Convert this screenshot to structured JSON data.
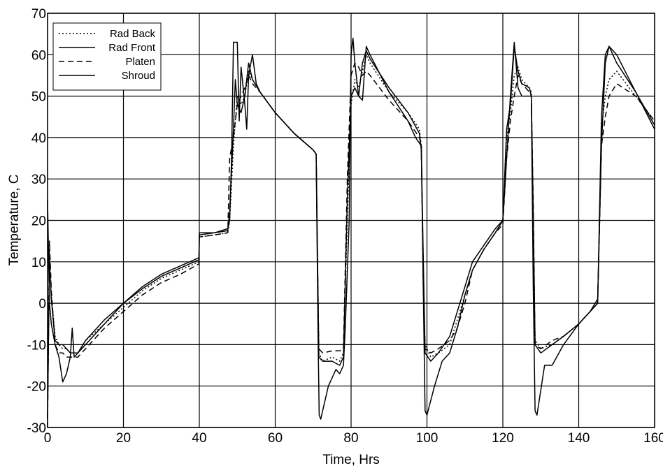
{
  "chart_data": {
    "type": "line",
    "title": "",
    "xlabel": "Time, Hrs",
    "ylabel": "Temperature, C",
    "xlim": [
      0,
      160
    ],
    "ylim": [
      -30,
      70
    ],
    "xticks": [
      0,
      20,
      40,
      60,
      80,
      100,
      120,
      140,
      160
    ],
    "yticks": [
      -30,
      -20,
      -10,
      0,
      10,
      20,
      30,
      40,
      50,
      60,
      70
    ],
    "grid": true,
    "legend_position": "top-left",
    "series": [
      {
        "name": "Rad Back",
        "style": "dotted",
        "color": "#000000",
        "points": [
          [
            0,
            -28
          ],
          [
            0.5,
            12
          ],
          [
            1,
            2
          ],
          [
            2,
            -8
          ],
          [
            3,
            -10
          ],
          [
            4,
            -11
          ],
          [
            5,
            -11
          ],
          [
            6,
            -12
          ],
          [
            8,
            -12
          ],
          [
            10,
            -9
          ],
          [
            15,
            -5
          ],
          [
            20,
            -1
          ],
          [
            25,
            3
          ],
          [
            30,
            6
          ],
          [
            35,
            8
          ],
          [
            39.9,
            10
          ],
          [
            40,
            16
          ],
          [
            44,
            16.5
          ],
          [
            47.5,
            17
          ],
          [
            48,
            20
          ],
          [
            49,
            38
          ],
          [
            50,
            50
          ],
          [
            51,
            48
          ],
          [
            52,
            50
          ],
          [
            53,
            56
          ],
          [
            54,
            54
          ],
          [
            56,
            51
          ],
          [
            60,
            46
          ],
          [
            65,
            41
          ],
          [
            70,
            37
          ],
          [
            70.8,
            36
          ],
          [
            71,
            20
          ],
          [
            71.5,
            -12
          ],
          [
            72.5,
            -14
          ],
          [
            75,
            -13
          ],
          [
            77,
            -14
          ],
          [
            78,
            -12
          ],
          [
            79,
            20
          ],
          [
            80,
            48
          ],
          [
            81,
            54
          ],
          [
            82,
            52
          ],
          [
            83,
            56
          ],
          [
            84,
            60
          ],
          [
            85,
            58
          ],
          [
            90,
            51
          ],
          [
            95,
            46
          ],
          [
            98,
            42
          ],
          [
            98.5,
            38
          ],
          [
            99,
            10
          ],
          [
            99.5,
            -10
          ],
          [
            101,
            -13
          ],
          [
            103,
            -12
          ],
          [
            106,
            -10
          ],
          [
            108,
            -4
          ],
          [
            110,
            2
          ],
          [
            112,
            8
          ],
          [
            115,
            13
          ],
          [
            118,
            17
          ],
          [
            120,
            20
          ],
          [
            121,
            40
          ],
          [
            122,
            46
          ],
          [
            123,
            55
          ],
          [
            124,
            57
          ],
          [
            125,
            54
          ],
          [
            127,
            52
          ],
          [
            127.5,
            51
          ],
          [
            128,
            20
          ],
          [
            128.5,
            -9
          ],
          [
            130,
            -11
          ],
          [
            133,
            -10
          ],
          [
            136,
            -8
          ],
          [
            140,
            -5
          ],
          [
            143,
            -2
          ],
          [
            145,
            0
          ],
          [
            146,
            42
          ],
          [
            147,
            50
          ],
          [
            148,
            54
          ],
          [
            150,
            56
          ],
          [
            155,
            50
          ],
          [
            160,
            44
          ]
        ]
      },
      {
        "name": "Rad Front",
        "style": "solid",
        "color": "#000000",
        "points": [
          [
            0,
            -28
          ],
          [
            0.5,
            10
          ],
          [
            1,
            1
          ],
          [
            2,
            -9
          ],
          [
            3,
            -10
          ],
          [
            4,
            -10
          ],
          [
            5,
            -11
          ],
          [
            6,
            -12
          ],
          [
            8,
            -12
          ],
          [
            10,
            -9
          ],
          [
            15,
            -4
          ],
          [
            20,
            0
          ],
          [
            25,
            3.5
          ],
          [
            30,
            6.5
          ],
          [
            35,
            8.5
          ],
          [
            39.9,
            10.5
          ],
          [
            40,
            16.5
          ],
          [
            44,
            17
          ],
          [
            47.5,
            17.5
          ],
          [
            48,
            22
          ],
          [
            49,
            42
          ],
          [
            49.5,
            54
          ],
          [
            50,
            48
          ],
          [
            51,
            46
          ],
          [
            52,
            50
          ],
          [
            53,
            58
          ],
          [
            54,
            54
          ],
          [
            56,
            51
          ],
          [
            60,
            46
          ],
          [
            65,
            41
          ],
          [
            70,
            37
          ],
          [
            70.8,
            36
          ],
          [
            71,
            22
          ],
          [
            71.5,
            -13
          ],
          [
            72.5,
            -14
          ],
          [
            75,
            -14
          ],
          [
            77,
            -15
          ],
          [
            78,
            -13
          ],
          [
            79,
            25
          ],
          [
            80,
            50
          ],
          [
            81,
            52
          ],
          [
            82,
            50
          ],
          [
            83,
            58
          ],
          [
            84,
            61
          ],
          [
            85,
            59
          ],
          [
            90,
            52
          ],
          [
            95,
            46
          ],
          [
            98,
            41
          ],
          [
            98.5,
            37
          ],
          [
            99,
            12
          ],
          [
            99.5,
            -12
          ],
          [
            101,
            -14
          ],
          [
            103,
            -12
          ],
          [
            106,
            -8
          ],
          [
            108,
            -2
          ],
          [
            110,
            4
          ],
          [
            112,
            10
          ],
          [
            115,
            14
          ],
          [
            118,
            18
          ],
          [
            120,
            20
          ],
          [
            121,
            42
          ],
          [
            122,
            48
          ],
          [
            123,
            62
          ],
          [
            124,
            56
          ],
          [
            125,
            53
          ],
          [
            127,
            52
          ],
          [
            127.5,
            50
          ],
          [
            128,
            22
          ],
          [
            128.5,
            -10
          ],
          [
            130,
            -12
          ],
          [
            133,
            -10
          ],
          [
            136,
            -8
          ],
          [
            140,
            -5
          ],
          [
            143,
            -2
          ],
          [
            145,
            0
          ],
          [
            146,
            45
          ],
          [
            147,
            60
          ],
          [
            148,
            62
          ],
          [
            150,
            58
          ],
          [
            155,
            51
          ],
          [
            160,
            43
          ]
        ]
      },
      {
        "name": "Platen",
        "style": "dashed",
        "color": "#000000",
        "points": [
          [
            0,
            -30
          ],
          [
            0.5,
            15
          ],
          [
            1,
            3
          ],
          [
            2,
            -10
          ],
          [
            3,
            -12
          ],
          [
            4,
            -12
          ],
          [
            5,
            -13
          ],
          [
            6,
            -13
          ],
          [
            8,
            -13
          ],
          [
            10,
            -11
          ],
          [
            15,
            -6
          ],
          [
            20,
            -2
          ],
          [
            25,
            2
          ],
          [
            30,
            5
          ],
          [
            35,
            7
          ],
          [
            39.9,
            9.5
          ],
          [
            40,
            16
          ],
          [
            44,
            16.5
          ],
          [
            47.5,
            17
          ],
          [
            48,
            35
          ],
          [
            49,
            40
          ],
          [
            50,
            48
          ],
          [
            51,
            50
          ],
          [
            52,
            52
          ],
          [
            53,
            55
          ],
          [
            54,
            53
          ],
          [
            56,
            51
          ],
          [
            60,
            46
          ],
          [
            65,
            41
          ],
          [
            70,
            37
          ],
          [
            70.8,
            36
          ],
          [
            71,
            20
          ],
          [
            71.5,
            -11
          ],
          [
            72.5,
            -12
          ],
          [
            75,
            -11.5
          ],
          [
            77,
            -11.5
          ],
          [
            78,
            -11
          ],
          [
            79,
            30
          ],
          [
            80,
            55
          ],
          [
            81,
            58
          ],
          [
            82,
            57
          ],
          [
            83,
            55
          ],
          [
            84,
            56
          ],
          [
            85,
            55
          ],
          [
            90,
            49
          ],
          [
            95,
            44
          ],
          [
            98,
            40
          ],
          [
            98.5,
            38
          ],
          [
            99,
            5
          ],
          [
            99.5,
            -11
          ],
          [
            101,
            -12
          ],
          [
            103,
            -11
          ],
          [
            106,
            -9
          ],
          [
            108,
            -6
          ],
          [
            110,
            0
          ],
          [
            112,
            8
          ],
          [
            115,
            13
          ],
          [
            118,
            17
          ],
          [
            120,
            19
          ],
          [
            121,
            35
          ],
          [
            122,
            44
          ],
          [
            123,
            50
          ],
          [
            124,
            55
          ],
          [
            125,
            53
          ],
          [
            127,
            51
          ],
          [
            127.5,
            50
          ],
          [
            128,
            25
          ],
          [
            128.5,
            -10
          ],
          [
            130,
            -11
          ],
          [
            133,
            -9
          ],
          [
            136,
            -8
          ],
          [
            140,
            -5
          ],
          [
            143,
            -2
          ],
          [
            145,
            0
          ],
          [
            146,
            38
          ],
          [
            147,
            45
          ],
          [
            148,
            50
          ],
          [
            150,
            53
          ],
          [
            155,
            50
          ],
          [
            160,
            44
          ]
        ]
      },
      {
        "name": "Shroud",
        "style": "solid",
        "color": "#000000",
        "points": [
          [
            0,
            25
          ],
          [
            0.5,
            0
          ],
          [
            1,
            -5
          ],
          [
            2,
            -10
          ],
          [
            3,
            -13
          ],
          [
            4,
            -19
          ],
          [
            5,
            -17
          ],
          [
            6,
            -13
          ],
          [
            6.5,
            -6
          ],
          [
            7,
            -13
          ],
          [
            8,
            -12
          ],
          [
            10,
            -10
          ],
          [
            15,
            -5
          ],
          [
            20,
            0
          ],
          [
            25,
            4
          ],
          [
            30,
            7
          ],
          [
            35,
            9
          ],
          [
            39.9,
            11
          ],
          [
            40,
            17
          ],
          [
            44,
            17
          ],
          [
            47.5,
            18
          ],
          [
            48,
            20
          ],
          [
            48.5,
            35
          ],
          [
            49,
            63
          ],
          [
            50,
            63
          ],
          [
            50.5,
            44
          ],
          [
            51,
            57
          ],
          [
            52,
            48
          ],
          [
            52.5,
            42
          ],
          [
            53,
            55
          ],
          [
            54,
            60
          ],
          [
            55,
            53
          ],
          [
            56,
            51
          ],
          [
            60,
            46
          ],
          [
            65,
            41
          ],
          [
            70,
            37
          ],
          [
            70.8,
            36
          ],
          [
            71.3,
            -8
          ],
          [
            71.6,
            -27
          ],
          [
            72,
            -28
          ],
          [
            74,
            -20
          ],
          [
            76,
            -16
          ],
          [
            77,
            -17
          ],
          [
            78,
            -15
          ],
          [
            78.5,
            -5
          ],
          [
            79.5,
            20
          ],
          [
            80,
            60
          ],
          [
            80.5,
            64
          ],
          [
            81,
            58
          ],
          [
            82,
            50
          ],
          [
            83,
            49
          ],
          [
            84,
            62
          ],
          [
            85,
            60
          ],
          [
            90,
            51
          ],
          [
            95,
            44
          ],
          [
            97,
            40
          ],
          [
            98.5,
            38
          ],
          [
            99,
            5
          ],
          [
            99.5,
            -26
          ],
          [
            100,
            -27
          ],
          [
            102,
            -20
          ],
          [
            104,
            -14
          ],
          [
            106,
            -12
          ],
          [
            108,
            -6
          ],
          [
            110,
            2
          ],
          [
            112,
            8
          ],
          [
            115,
            13
          ],
          [
            118,
            17
          ],
          [
            120,
            20
          ],
          [
            121,
            35
          ],
          [
            122,
            50
          ],
          [
            123,
            63
          ],
          [
            124,
            52
          ],
          [
            125,
            50
          ],
          [
            127,
            50
          ],
          [
            127.5,
            50
          ],
          [
            128,
            5
          ],
          [
            128.5,
            -26
          ],
          [
            129,
            -27
          ],
          [
            131,
            -15
          ],
          [
            133,
            -15
          ],
          [
            136,
            -10
          ],
          [
            140,
            -5
          ],
          [
            143,
            -2
          ],
          [
            145,
            1
          ],
          [
            146,
            38
          ],
          [
            147,
            58
          ],
          [
            148,
            62
          ],
          [
            150,
            60
          ],
          [
            155,
            51
          ],
          [
            160,
            42
          ]
        ]
      }
    ]
  }
}
